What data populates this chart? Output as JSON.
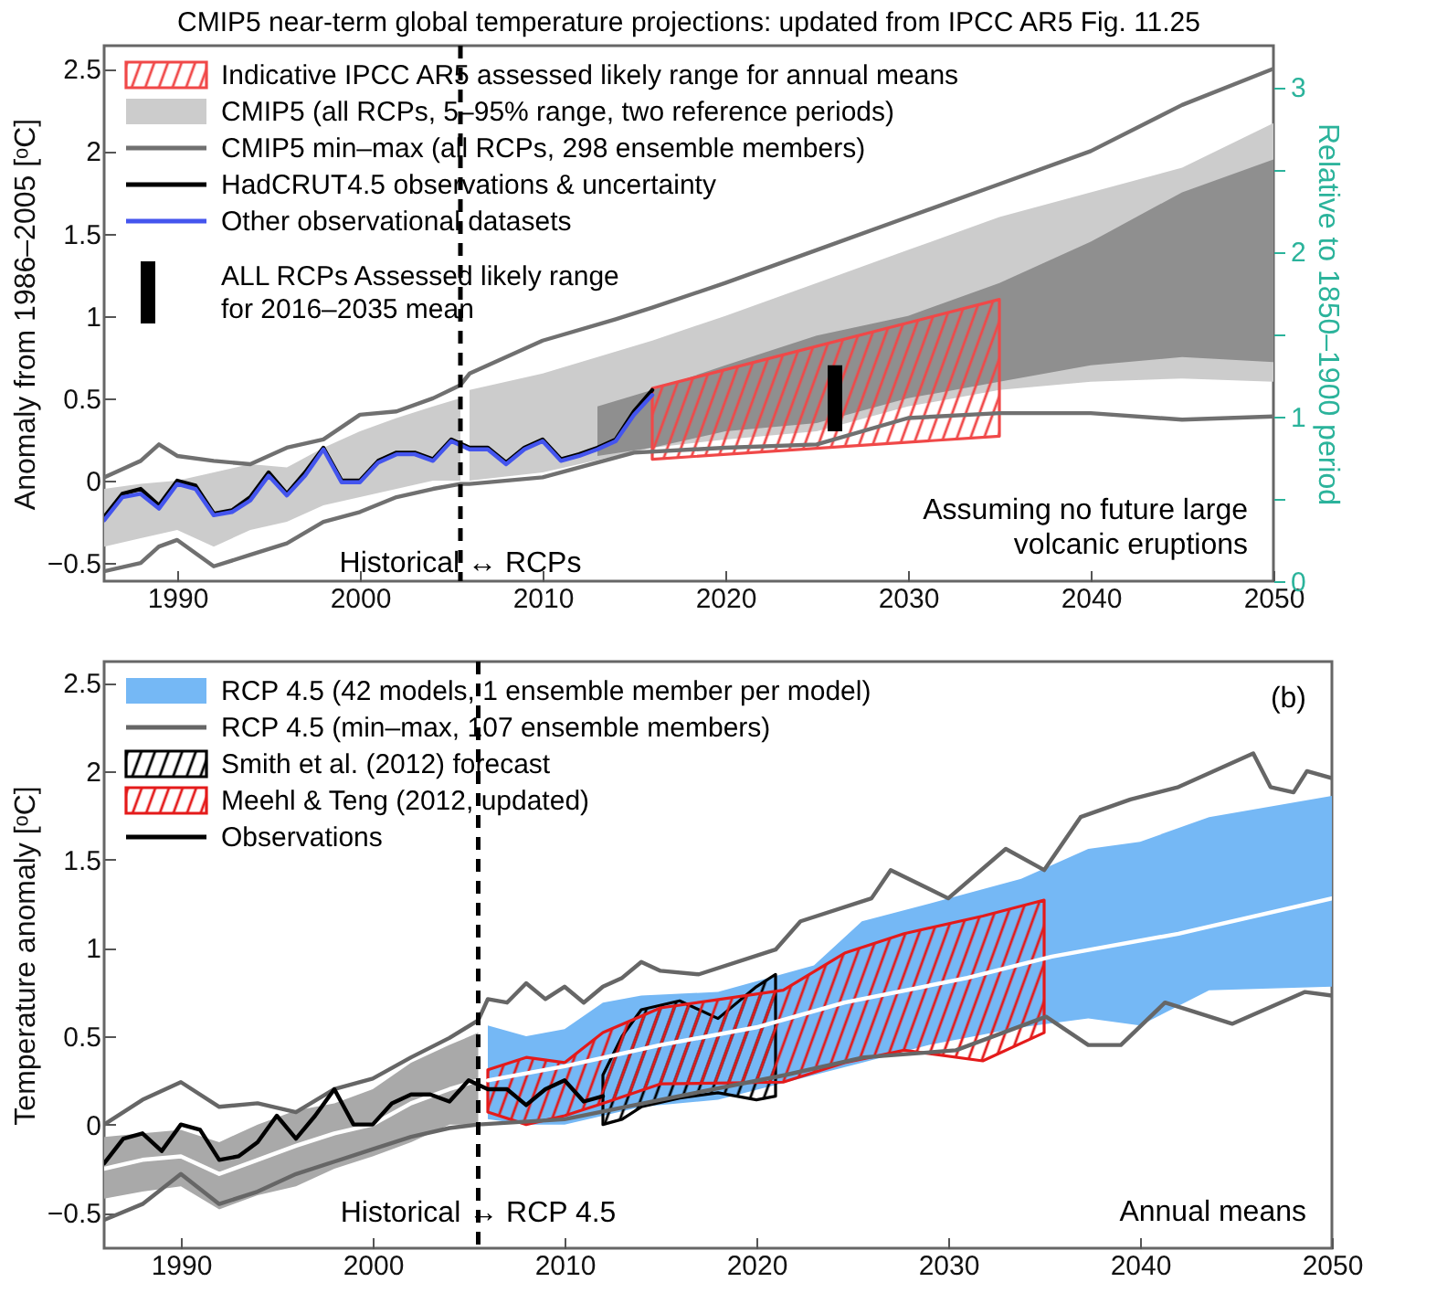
{
  "chart_data": [
    {
      "type": "line",
      "title": "CMIP5 near-term global temperature projections: updated from IPCC AR5 Fig. 11.25",
      "ylabel": "Anomaly from 1986–2005 [ᵒC]",
      "y2label": "Relative to 1850–1900 period",
      "xlim": [
        1986,
        2050
      ],
      "xticks": [
        1990,
        2000,
        2010,
        2020,
        2030,
        2040,
        2050
      ],
      "ylim": [
        -0.61,
        2.64
      ],
      "yticks": [
        -0.5,
        0,
        0.5,
        1,
        1.5,
        2,
        2.5
      ],
      "y2lim": [
        0,
        3.25
      ],
      "y2ticks": [
        0,
        {
          "value": 0.5,
          "label": null
        },
        1,
        {
          "value": 1.5,
          "label": null
        },
        2,
        {
          "value": 2.5,
          "label": null
        },
        3
      ],
      "legend": "top left",
      "series": [
        {
          "name": "Indicative IPCC AR5 assessed likely range for annual means",
          "type": "area",
          "line_style": "solid",
          "color": "#f04848",
          "x": [
            2016,
            2035
          ],
          "values": [
            null,
            null
          ],
          "lower": [
            0.13,
            0.27
          ],
          "upper": [
            0.56,
            1.1
          ]
        },
        {
          "name": "CMIP5 (all RCPs, 5–95% range, two reference periods)",
          "type": "area",
          "color": "#cccccc",
          "x": [
            1986,
            1988,
            1990,
            1992,
            1994,
            1996,
            1998,
            2000,
            2002,
            2004,
            2005.5
          ],
          "values": [
            null,
            null,
            null,
            null,
            null,
            null,
            null,
            null,
            null,
            null,
            null
          ],
          "lower": [
            -0.4,
            -0.35,
            -0.3,
            -0.4,
            -0.3,
            -0.25,
            -0.15,
            -0.1,
            -0.05,
            0,
            0
          ],
          "upper": [
            -0.05,
            -0.02,
            0,
            0.05,
            0.1,
            0.08,
            0.2,
            0.3,
            0.38,
            0.45,
            0.5
          ]
        },
        {
          "type": "area",
          "color": "#cccccc",
          "x": [
            2006,
            2010,
            2016,
            2020,
            2025,
            2030,
            2035,
            2040,
            2045,
            2050
          ],
          "values": [
            null,
            null,
            null,
            null,
            null,
            null,
            null,
            null,
            null,
            null
          ],
          "lower": [
            0,
            0.05,
            0.2,
            0.25,
            0.3,
            0.45,
            0.55,
            0.6,
            0.62,
            0.6
          ],
          "upper": [
            0.55,
            0.65,
            0.85,
            1,
            1.2,
            1.4,
            1.6,
            1.75,
            1.9,
            2.17
          ]
        },
        {
          "type": "area",
          "color": "#8f8f8f",
          "x": [
            2013,
            2016,
            2020,
            2025,
            2030,
            2035,
            2040,
            2045,
            2050
          ],
          "values": [
            null,
            null,
            null,
            null,
            null,
            null,
            null,
            null,
            null
          ],
          "lower": [
            0.15,
            0.2,
            0.3,
            0.35,
            0.5,
            0.6,
            0.7,
            0.75,
            0.72
          ],
          "upper": [
            0.45,
            0.55,
            0.7,
            0.88,
            1,
            1.2,
            1.45,
            1.75,
            1.95
          ]
        },
        {
          "name": "CMIP5 min–max (all RCPs, 298 ensemble members)",
          "color": "#707070",
          "x": [
            1986,
            1988,
            1989,
            1990,
            1992,
            1994,
            1996,
            1998,
            2000,
            2002,
            2004,
            2005.5,
            2006,
            2010,
            2014,
            2016,
            2020,
            2025,
            2030,
            2035,
            2040,
            2045,
            2050
          ],
          "values": [
            0.02,
            0.12,
            0.22,
            0.15,
            0.12,
            0.1,
            0.2,
            0.25,
            0.4,
            0.42,
            0.5,
            0.58,
            0.65,
            0.85,
            0.98,
            1.05,
            1.2,
            1.4,
            1.6,
            1.8,
            2,
            2.28,
            2.5
          ]
        },
        {
          "color": "#707070",
          "x": [
            1986,
            1988,
            1989,
            1990,
            1992,
            1994,
            1996,
            1998,
            2000,
            2002,
            2004,
            2005.5,
            2006,
            2010,
            2015,
            2020,
            2025,
            2030,
            2035,
            2040,
            2045,
            2050
          ],
          "values": [
            -0.55,
            -0.5,
            -0.4,
            -0.36,
            -0.52,
            -0.45,
            -0.38,
            -0.25,
            -0.19,
            -0.1,
            -0.05,
            -0.02,
            -0.02,
            0.02,
            0.17,
            0.2,
            0.22,
            0.38,
            0.41,
            0.41,
            0.37,
            0.39
          ]
        },
        {
          "name": "HadCRUT4.5 observations & uncertainty",
          "color": "#000000",
          "x": [
            1986,
            1987,
            1988,
            1989,
            1990,
            1991,
            1992,
            1993,
            1994,
            1995,
            1996,
            1997,
            1998,
            1999,
            2000,
            2001,
            2002,
            2003,
            2004,
            2005,
            2006,
            2007,
            2008,
            2009,
            2010,
            2011,
            2012,
            2013,
            2014,
            2015,
            2016
          ],
          "values": [
            -0.22,
            -0.08,
            -0.05,
            -0.15,
            0,
            -0.03,
            -0.2,
            -0.18,
            -0.1,
            0.05,
            -0.08,
            0.05,
            0.2,
            0,
            0,
            0.12,
            0.17,
            0.17,
            0.13,
            0.25,
            0.2,
            0.2,
            0.11,
            0.2,
            0.25,
            0.13,
            0.16,
            0.2,
            0.25,
            0.42,
            0.55
          ]
        },
        {
          "name": "Other observational datasets",
          "color": "#4455ee",
          "x": [
            1986,
            1987,
            1988,
            1989,
            1990,
            1991,
            1992,
            1993,
            1994,
            1995,
            1996,
            1997,
            1998,
            1999,
            2000,
            2001,
            2002,
            2003,
            2004,
            2005,
            2006,
            2007,
            2008,
            2009,
            2010,
            2011,
            2012,
            2013,
            2014,
            2015,
            2016
          ],
          "values": [
            -0.24,
            -0.1,
            -0.08,
            -0.17,
            -0.02,
            -0.05,
            -0.21,
            -0.19,
            -0.12,
            0.03,
            -0.09,
            0.03,
            0.19,
            -0.01,
            -0.01,
            0.11,
            0.16,
            0.16,
            0.12,
            0.24,
            0.19,
            0.19,
            0.1,
            0.19,
            0.24,
            0.12,
            0.15,
            0.19,
            0.24,
            0.4,
            0.52
          ]
        },
        {
          "name": "ALL RCPs Assessed likely range for 2016–2035 mean",
          "type": "bar",
          "color": "#000000",
          "x": [
            2026
          ],
          "base": [
            0.3
          ],
          "values": [
            0.4
          ]
        }
      ],
      "ref_lines": [
        {
          "axis": "x",
          "value": 2005.5,
          "line_style": "dashed",
          "color": "#000000"
        }
      ],
      "annotations": [
        "Assuming no future large volcanic eruptions",
        {
          "text": "Historical ↔ RCPs",
          "x": 2005.5,
          "y": -0.5
        }
      ]
    },
    {
      "type": "line",
      "ylabel": "Temperature anomaly [ᵒC]",
      "xlim": [
        1986,
        2050
      ],
      "xticks": [
        1990,
        2000,
        2010,
        2020,
        2030,
        2040,
        2050
      ],
      "ylim": [
        -0.7,
        2.62
      ],
      "yticks": [
        -0.5,
        0,
        0.5,
        1,
        1.5,
        2,
        2.5
      ],
      "legend": "top left",
      "series": [
        {
          "type": "area",
          "color": "#a9a9a9",
          "x": [
            1986,
            1988,
            1990,
            1992,
            1994,
            1996,
            1998,
            2000,
            2002,
            2004,
            2005.5
          ],
          "values": [
            null,
            null,
            null,
            null,
            null,
            null,
            null,
            null,
            null,
            null,
            null
          ],
          "lower": [
            -0.42,
            -0.38,
            -0.35,
            -0.48,
            -0.4,
            -0.35,
            -0.25,
            -0.18,
            -0.1,
            0,
            0
          ],
          "upper": [
            -0.07,
            -0.05,
            -0.03,
            -0.1,
            0,
            0.08,
            0.12,
            0.2,
            0.35,
            0.45,
            0.52
          ]
        },
        {
          "name": "RCP 4.5 (42 models, 1 ensemble member per model)",
          "type": "area",
          "color": "#75b8f5",
          "x": [
            2006,
            2008,
            2010,
            2012,
            2014,
            2018,
            2023,
            2025.5,
            2029,
            2033.8,
            2037.3,
            2040,
            2043.6,
            2050
          ],
          "values": [
            null,
            null,
            null,
            null,
            null,
            null,
            null,
            null,
            null,
            null,
            null,
            null,
            null,
            null
          ],
          "lower": [
            0.03,
            0,
            0,
            0.05,
            0.1,
            0.14,
            0.28,
            0.35,
            0.45,
            0.55,
            0.6,
            0.56,
            0.76,
            0.78
          ],
          "upper": [
            0.56,
            0.5,
            0.54,
            0.69,
            0.73,
            0.75,
            0.9,
            1.15,
            1.25,
            1.39,
            1.56,
            1.6,
            1.74,
            1.86
          ]
        },
        {
          "color": "#ffffff",
          "x": [
            1986,
            1988,
            1990,
            1992,
            1994,
            1996,
            1998,
            2000,
            2002,
            2004,
            2005.5
          ],
          "values": [
            -0.25,
            -0.2,
            -0.18,
            -0.28,
            -0.2,
            -0.12,
            -0.05,
            0,
            0.12,
            0.2,
            0.25
          ]
        },
        {
          "color": "#ffffff",
          "x": [
            2006,
            2010,
            2015,
            2020,
            2024.6,
            2031,
            2035.4,
            2042,
            2050
          ],
          "values": [
            0.25,
            0.33,
            0.45,
            0.55,
            0.69,
            0.83,
            0.95,
            1.08,
            1.28
          ]
        },
        {
          "name": "RCP 4.5 (min–max, 107 ensemble members)",
          "color": "#666666",
          "x": [
            1986,
            1988,
            1990,
            1992,
            1994,
            1996,
            1998,
            2000,
            2002,
            2004,
            2005.5,
            2006,
            2007,
            2008,
            2009,
            2010,
            2011,
            2012,
            2013,
            2014,
            2015,
            2017,
            2021,
            2022.3,
            2026,
            2027,
            2030,
            2033,
            2035,
            2036.9,
            2039.5,
            2042,
            2045.9,
            2046.8,
            2048,
            2048.7,
            2050
          ],
          "values": [
            0,
            0.14,
            0.24,
            0.1,
            0.12,
            0.07,
            0.2,
            0.26,
            0.38,
            0.49,
            0.59,
            0.71,
            0.69,
            0.8,
            0.71,
            0.78,
            0.69,
            0.78,
            0.83,
            0.92,
            0.87,
            0.85,
            0.99,
            1.15,
            1.28,
            1.44,
            1.28,
            1.56,
            1.44,
            1.74,
            1.84,
            1.91,
            2.1,
            1.91,
            1.88,
            2,
            1.96
          ]
        },
        {
          "color": "#666666",
          "x": [
            1986,
            1988,
            1990,
            1992,
            1994,
            1996,
            1998,
            2000,
            2002,
            2004,
            2005.5,
            2010,
            2015,
            2021.5,
            2025.6,
            2030.4,
            2035.1,
            2037.3,
            2039,
            2041.3,
            2044.8,
            2048.6,
            2050
          ],
          "values": [
            -0.54,
            -0.45,
            -0.28,
            -0.45,
            -0.38,
            -0.28,
            -0.21,
            -0.14,
            -0.07,
            -0.02,
            0,
            0.03,
            0.14,
            0.28,
            0.38,
            0.42,
            0.61,
            0.45,
            0.45,
            0.69,
            0.57,
            0.75,
            0.73
          ]
        },
        {
          "name": "Smith et al. (2012) forecast",
          "type": "area",
          "line_style": "solid",
          "color": "#000000",
          "x": [
            2012,
            2013,
            2014,
            2016,
            2018,
            2020,
            2021
          ],
          "values": [
            null,
            null,
            null,
            null,
            null,
            null,
            null
          ],
          "lower": [
            0,
            0.03,
            0.1,
            0.15,
            0.18,
            0.14,
            0.16
          ],
          "upper": [
            0.28,
            0.5,
            0.65,
            0.7,
            0.6,
            0.78,
            0.85
          ]
        },
        {
          "name": "Meehl & Teng (2012, updated)",
          "type": "area",
          "line_style": "solid",
          "color": "#e41a1a",
          "x": [
            2006,
            2008,
            2010,
            2012,
            2015,
            2021.4,
            2024.6,
            2027.7,
            2031.8,
            2035
          ],
          "values": [
            null,
            null,
            null,
            null,
            null,
            null,
            null,
            null,
            null,
            null
          ],
          "lower": [
            0.07,
            0,
            0.05,
            0.12,
            0.23,
            0.24,
            0.35,
            0.42,
            0.36,
            0.52
          ],
          "upper": [
            0.31,
            0.38,
            0.35,
            0.52,
            0.66,
            0.76,
            0.97,
            1.08,
            1.18,
            1.27
          ]
        },
        {
          "name": "Observations",
          "color": "#000000",
          "x": [
            1986,
            1987,
            1988,
            1989,
            1990,
            1991,
            1992,
            1993,
            1994,
            1995,
            1996,
            1997,
            1998,
            1999,
            2000,
            2001,
            2002,
            2003,
            2004,
            2005,
            2006,
            2007,
            2008,
            2009,
            2010,
            2011,
            2012
          ],
          "values": [
            -0.22,
            -0.08,
            -0.05,
            -0.15,
            0,
            -0.03,
            -0.2,
            -0.18,
            -0.1,
            0.05,
            -0.08,
            0.05,
            0.2,
            0,
            0,
            0.12,
            0.17,
            0.17,
            0.13,
            0.25,
            0.2,
            0.2,
            0.11,
            0.2,
            0.25,
            0.13,
            0.16
          ]
        }
      ],
      "ref_lines": [
        {
          "axis": "x",
          "value": 2005.5,
          "line_style": "dashed",
          "color": "#000000"
        }
      ],
      "annotations": [
        "Annual means",
        "(b)",
        {
          "text": "Historical ↔ RCP 4.5",
          "x": 2005.5,
          "y": -0.5
        }
      ]
    }
  ]
}
